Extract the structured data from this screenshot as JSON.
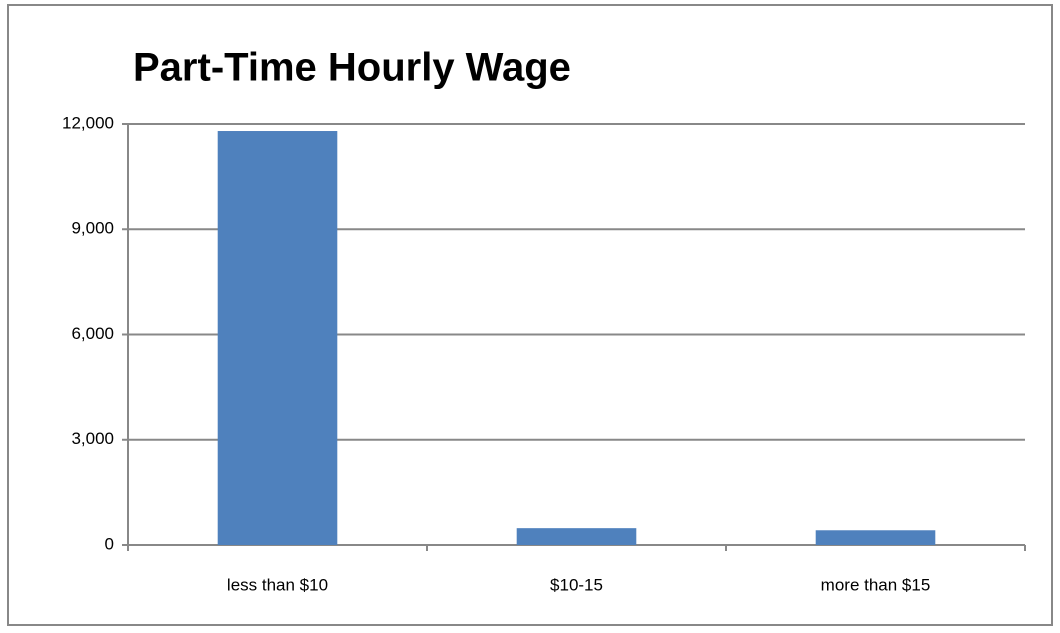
{
  "chart_data": {
    "type": "bar",
    "title": "Part-Time Hourly Wage",
    "categories": [
      "less than $10",
      "$10-15",
      "more than $15"
    ],
    "values": [
      11800,
      480,
      420
    ],
    "color": "#4f81bd",
    "ylim": [
      0,
      12000
    ],
    "yticks": [
      0,
      {
        "value": 3000,
        "label": "3,000"
      },
      {
        "value": 6000,
        "label": "6,000"
      },
      {
        "value": 9000,
        "label": "9,000"
      },
      {
        "value": 12000,
        "label": "12,000"
      }
    ],
    "grid": true
  }
}
